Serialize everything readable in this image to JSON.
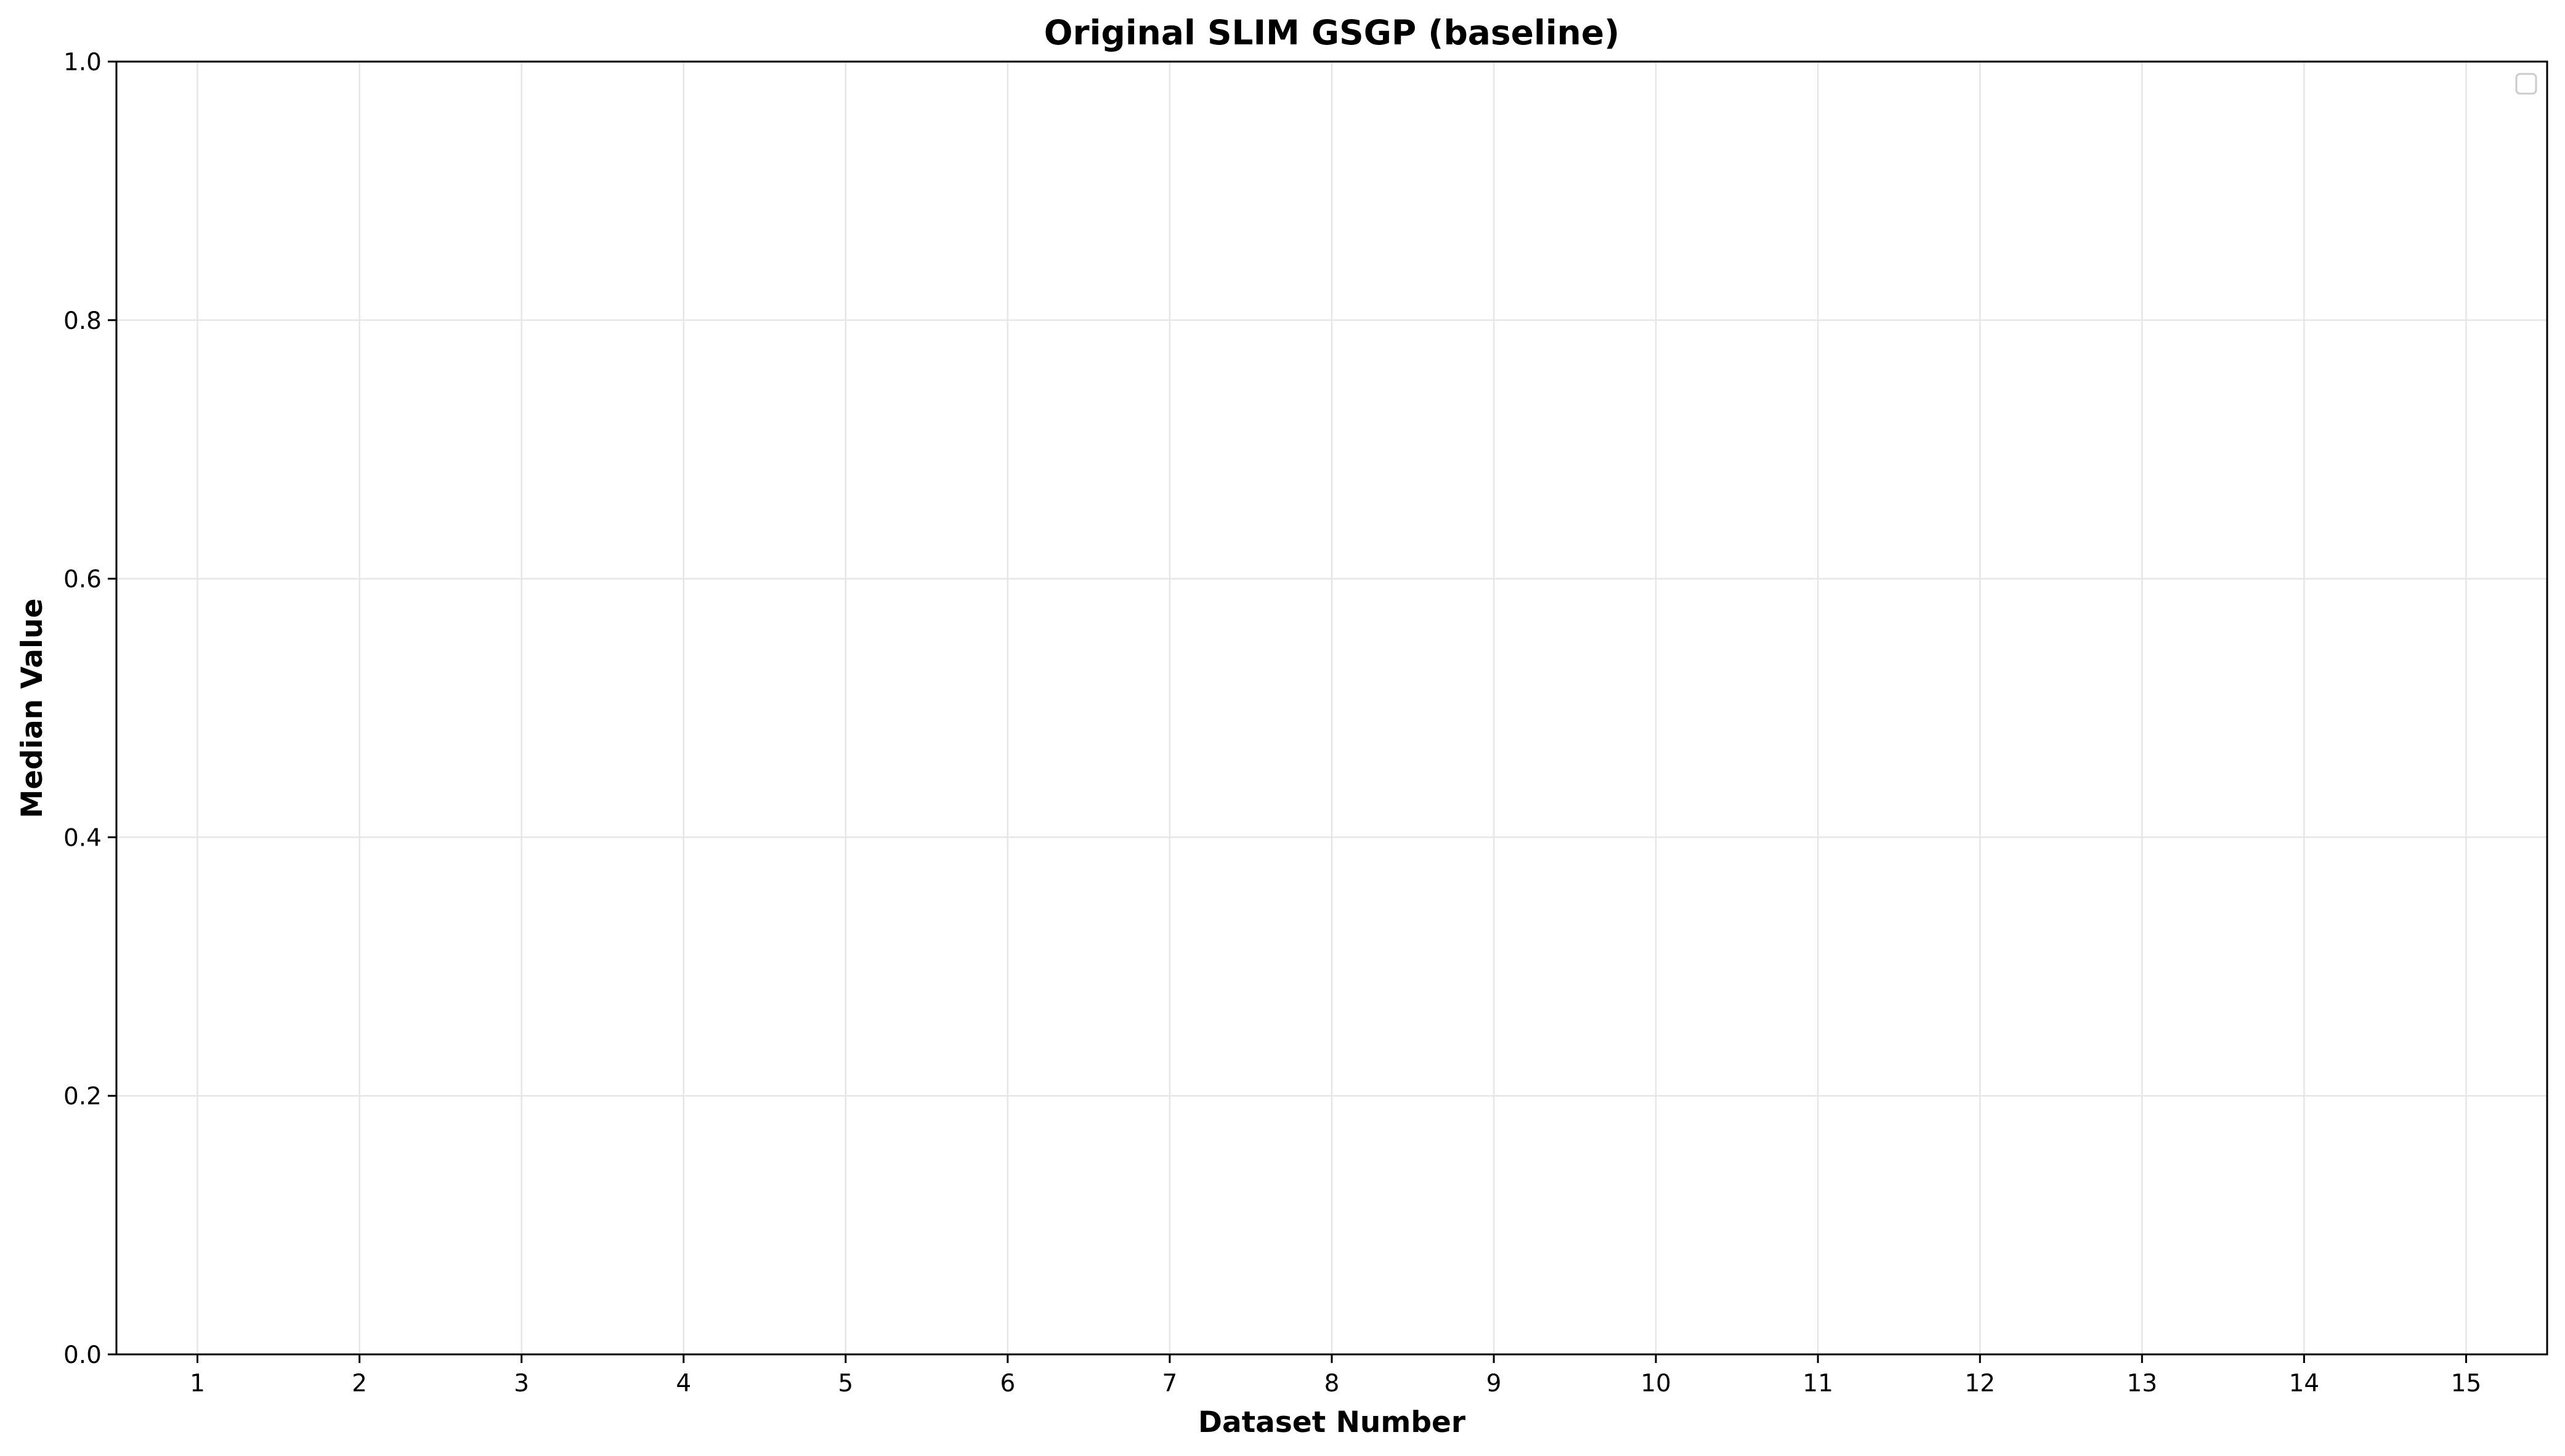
{
  "chart_data": {
    "type": "line",
    "title": "Original SLIM GSGP (baseline)",
    "xlabel": "Dataset Number",
    "ylabel": "Median Value",
    "x": [
      1,
      2,
      3,
      4,
      5,
      6,
      7,
      8,
      9,
      10,
      11,
      12,
      13,
      14,
      15
    ],
    "x_tick_labels": [
      "1",
      "2",
      "3",
      "4",
      "5",
      "6",
      "7",
      "8",
      "9",
      "10",
      "11",
      "12",
      "13",
      "14",
      "15"
    ],
    "xlim": [
      0.5,
      15.5
    ],
    "ylim": [
      0.0,
      1.0
    ],
    "y_ticks": [
      0.0,
      0.2,
      0.4,
      0.6,
      0.8,
      1.0
    ],
    "y_tick_labels": [
      "0.0",
      "0.2",
      "0.4",
      "0.6",
      "0.8",
      "1.0"
    ],
    "series": [],
    "grid": true,
    "legend": {
      "placement": "top-right",
      "entries": []
    }
  },
  "colors": {
    "background": "#ffffff",
    "axes": "#000000",
    "grid": "#e6e6e6",
    "legend_border": "#cccccc"
  }
}
